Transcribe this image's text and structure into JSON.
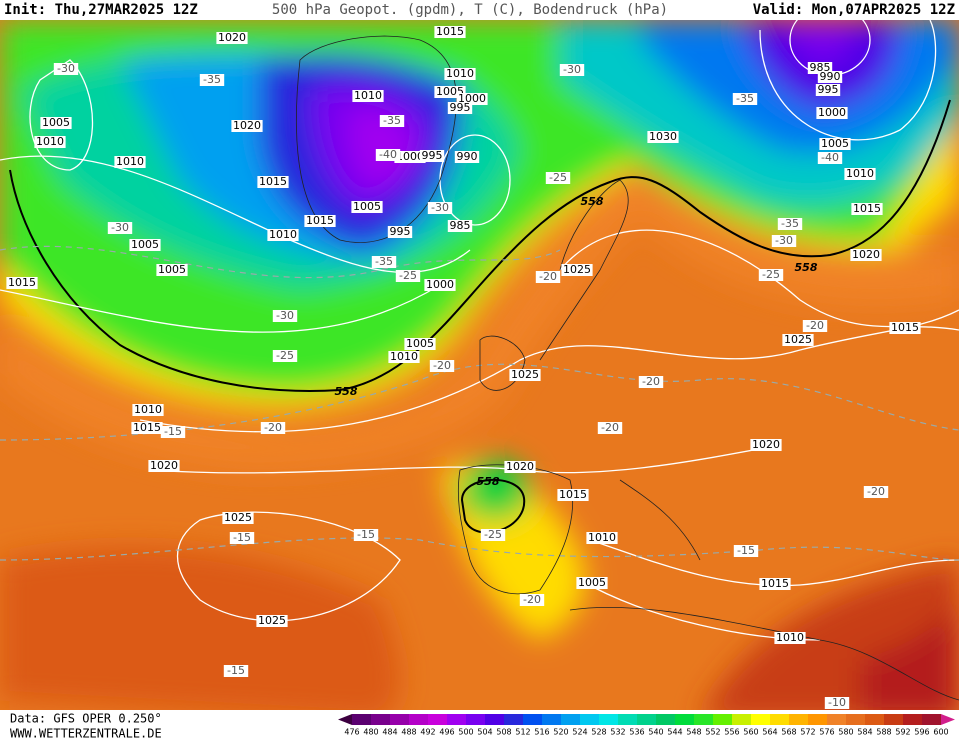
{
  "header": {
    "init": "Init: Thu,27MAR2025 12Z",
    "title": "500 hPa Geopot. (gpdm), T (C), Bodendruck (hPa)",
    "valid": "Valid: Mon,07APR2025 12Z"
  },
  "footer": {
    "data": "Data: GFS OPER 0.250°",
    "url": "WWW.WETTERZENTRALE.DE"
  },
  "colorbar": {
    "labels": [
      476,
      480,
      484,
      488,
      492,
      496,
      500,
      504,
      508,
      512,
      516,
      520,
      524,
      528,
      532,
      536,
      540,
      544,
      548,
      552,
      556,
      560,
      564,
      568,
      572,
      576,
      580,
      584,
      588,
      592,
      596,
      600
    ],
    "colors": [
      "#3c0040",
      "#5a0070",
      "#78008c",
      "#9600aa",
      "#b400c8",
      "#c800dc",
      "#a000f0",
      "#7800f0",
      "#5000e6",
      "#2828dc",
      "#0050f0",
      "#0078f0",
      "#00a0f0",
      "#00c8f0",
      "#00e6e6",
      "#00dcb4",
      "#00d28c",
      "#00c864",
      "#00dc3c",
      "#28e628",
      "#64f000",
      "#c8f000",
      "#ffff00",
      "#ffdc00",
      "#ffb400",
      "#ff9600",
      "#f08228",
      "#e66e1e",
      "#dc5a14",
      "#c83c14",
      "#b41e1e",
      "#a0142d",
      "#d21e8c"
    ]
  },
  "pressure_labels": [
    "1015",
    "1020",
    "1010",
    "1005",
    "1000",
    "995",
    "1010",
    "1020",
    "1005",
    "1010",
    "1010",
    "1015",
    "1000",
    "995",
    "990",
    "1005",
    "1015",
    "1010",
    "995",
    "985",
    "1005",
    "1005",
    "1015",
    "1000",
    "1030",
    "985",
    "990",
    "995",
    "1000",
    "1005",
    "1010",
    "1015",
    "1020",
    "1025",
    "1015",
    "1025",
    "1005",
    "1010",
    "1025",
    "1010",
    "1015",
    "1020",
    "1020",
    "1015",
    "1025",
    "1010",
    "1005",
    "1015",
    "1025",
    "1010",
    "1020"
  ],
  "temperature_labels": [
    "-30",
    "-35",
    "-30",
    "-35",
    "-40",
    "-35",
    "-40",
    "-25",
    "-30",
    "-30",
    "-35",
    "-25",
    "-20",
    "-30",
    "-25",
    "-35",
    "-30",
    "-25",
    "-20",
    "-20",
    "-20",
    "-20",
    "-15",
    "-20",
    "-15",
    "-15",
    "-20",
    "-25",
    "-20",
    "-15",
    "-15",
    "-10"
  ],
  "geopotential_labels": [
    "558",
    "558",
    "558",
    "558"
  ]
}
